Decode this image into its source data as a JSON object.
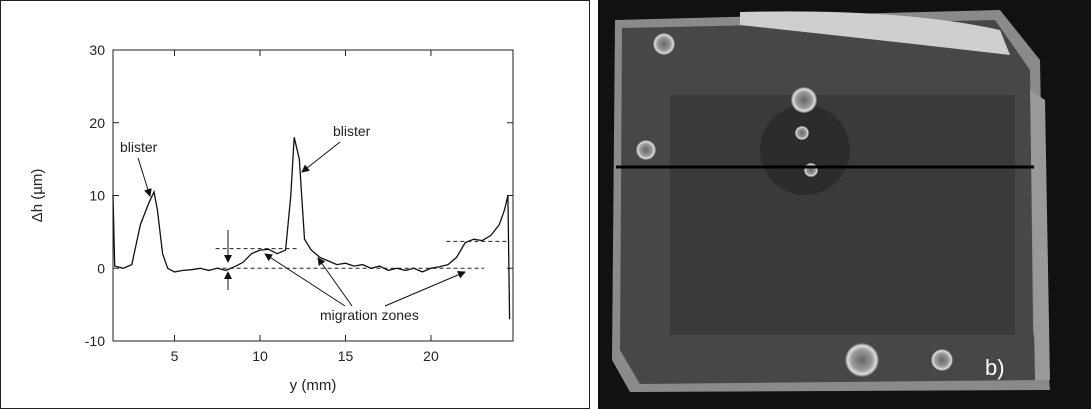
{
  "chart_data": {
    "type": "line",
    "x_label": "y (mm)",
    "y_label": "Δh (µm)",
    "x": [
      1.4,
      1.5,
      2,
      2.5,
      3,
      3.5,
      3.8,
      4,
      4.3,
      4.6,
      5,
      5.5,
      6,
      6.5,
      7,
      7.5,
      8,
      8.5,
      9,
      9.5,
      10,
      10.5,
      11,
      11.5,
      11.8,
      12,
      12.3,
      12.6,
      13,
      13.5,
      14,
      14.5,
      15,
      15.5,
      16,
      16.5,
      17,
      17.5,
      18,
      18.5,
      19,
      19.5,
      20,
      20.5,
      21,
      21.5,
      22,
      22.5,
      23,
      23.5,
      24,
      24.3,
      24.5,
      24.6
    ],
    "series": [
      {
        "color": "#111111",
        "values": [
          10,
          0.3,
          0,
          0.5,
          6,
          9,
          10.5,
          8,
          2,
          0,
          -0.5,
          -0.3,
          -0.2,
          0,
          -0.3,
          0,
          -0.3,
          0.2,
          0.8,
          2,
          2.5,
          2.6,
          2,
          2.5,
          10,
          18,
          15,
          4,
          2.5,
          1.5,
          1,
          0.5,
          0.7,
          0.3,
          0.5,
          0,
          0.3,
          -0.3,
          0,
          -0.3,
          0,
          -0.5,
          0,
          0.2,
          0.5,
          1.5,
          3.5,
          4,
          3.8,
          4.5,
          6,
          8,
          10,
          -7
        ]
      }
    ],
    "xlim": [
      1.4,
      24.8
    ],
    "ylim": [
      -10,
      30
    ],
    "xticks": [
      5,
      10,
      15,
      20
    ],
    "yticks": [
      -10,
      0,
      10,
      20,
      30
    ],
    "reference_lines": [
      {
        "x": [
          7.4,
          23.1
        ],
        "y": 0
      },
      {
        "x": [
          7.4,
          12.3
        ],
        "y": 2.7
      },
      {
        "x": [
          20.9,
          24.6
        ],
        "y": 3.7
      }
    ],
    "annotations": [
      "blister",
      "blister",
      "migration zones"
    ]
  },
  "photo": {
    "label": "b)"
  }
}
